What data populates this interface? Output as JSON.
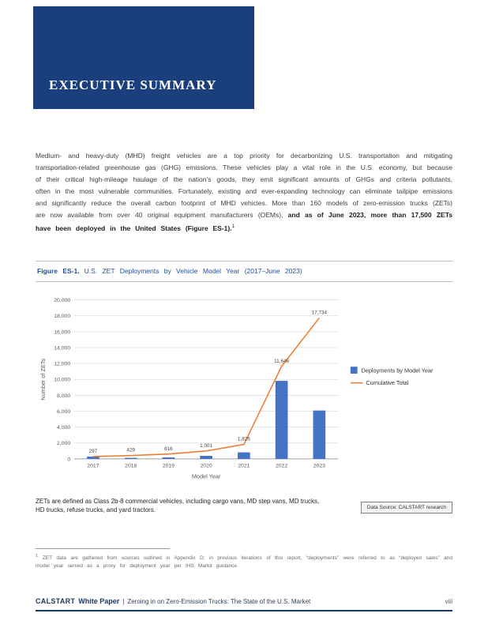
{
  "banner": {
    "title": "EXECUTIVE SUMMARY"
  },
  "paragraph": {
    "regular": "Medium- and heavy-duty (MHD) freight vehicles are a top priority for decarbonizing U.S. transportation and mitigating transportation-related greenhouse gas (GHG) emissions. These vehicles play a vital role in the U.S. economy, but because of their critical high-mileage haulage of the nation’s goods, they emit significant amounts of GHGs and criteria pollutants, often in the most vulnerable communities. Fortunately, existing and ever-expanding technology can eliminate tailpipe emissions and significantly reduce the overall carbon footprint of MHD vehicles. More than 160 models of zero-emission trucks (ZETs) are now available from over 40 original equipment manufacturers (OEMs), ",
    "bold": "and as of June 2023, more than 17,500 ZETs have been deployed in the United States (Figure ES-1).",
    "footnote_marker": "1"
  },
  "figure": {
    "caption_label": "Figure ES-1.",
    "caption_text": "U.S. ZET Deployments by Vehicle Model Year (2017–June 2023)",
    "note": "ZETs are defined as Class 2b-8 commercial vehicles, including cargo vans, MD step vans, MD trucks, HD trucks, refuse trucks, and yard tractors.",
    "data_source": "Data Source: CALSTART research"
  },
  "chart_data": {
    "type": "bar",
    "categories": [
      "2017",
      "2018",
      "2019",
      "2020",
      "2021",
      "2022",
      "2023"
    ],
    "series": [
      {
        "name": "Deployments by Model Year",
        "type": "bar",
        "color": "#4472C4",
        "values": [
          297,
          132,
          187,
          385,
          825,
          9820,
          6088
        ]
      },
      {
        "name": "Cumulative Total",
        "type": "line",
        "color": "#ED7D31",
        "values": [
          297,
          429,
          616,
          1001,
          1826,
          11646,
          17734
        ],
        "point_labels": [
          "297",
          "429",
          "616",
          "1,001",
          "1,826",
          "11,646",
          "17,734"
        ]
      }
    ],
    "title": "",
    "xlabel": "Model Year",
    "ylabel": "Number of ZETs",
    "ylim": [
      0,
      20000
    ],
    "ytick_step": 2000,
    "grid": true,
    "legend_position": "right"
  },
  "footnote": {
    "marker": "1",
    "text": "ZET data are gathered from sources outlined in Appendix D; in previous iterations of this report, “deployments” were referred to as “deployed sales” and model year served as a proxy for deployment year per IHS Markit guidance."
  },
  "footer": {
    "brand": "CALSTART",
    "doc_type": "White Paper",
    "separator": "|",
    "title": "Zeroing in on Zero-Emission Trucks: The State of the U.S. Market",
    "page_number": "viii"
  }
}
